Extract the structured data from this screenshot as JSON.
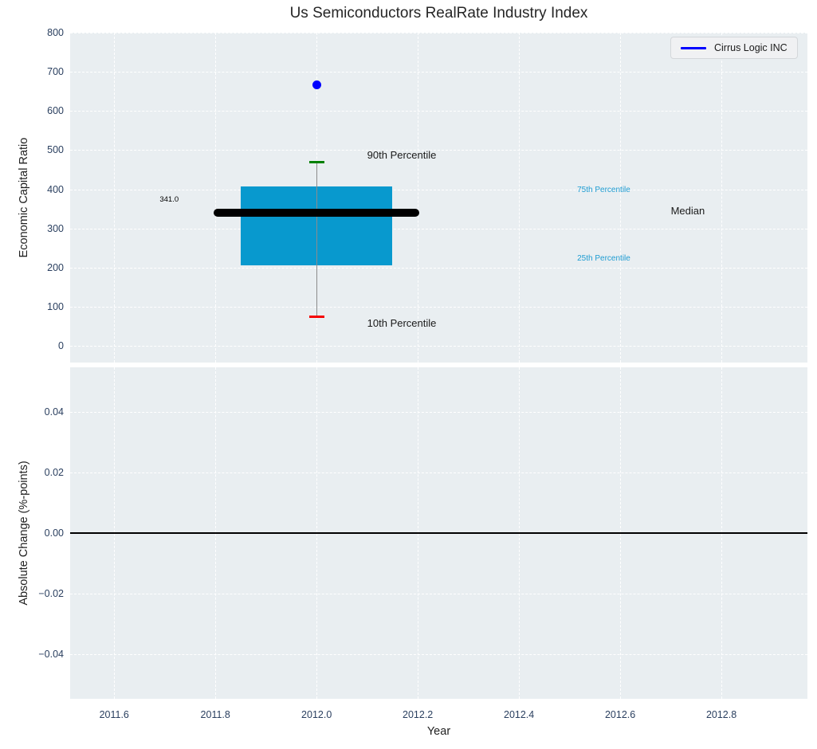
{
  "title": "Us Semiconductors RealRate Industry Index",
  "legend": {
    "label": "Cirrus Logic INC",
    "line_color": "#0000ff"
  },
  "colors": {
    "figure_bg": "#ffffff",
    "plot_bg": "#e9eef1",
    "grid": "#ffffff",
    "tick_label": "#2a3f5f",
    "axis_title": "#1f1f1f",
    "title_text": "#262626",
    "box_fill": "#0899ce",
    "median_line": "#000000",
    "whisker": "#8c8c8c",
    "cap_high": "#008000",
    "cap_low": "#f50000",
    "company_point": "#0000ff",
    "zero_line": "#000000",
    "percentile_text": "#1e9cd2",
    "legend_bg": "#f0f1f3",
    "legend_border": "#d4d7da"
  },
  "chart_data": [
    {
      "type": "boxplot",
      "panel": "top",
      "title": "Us Semiconductors RealRate Industry Index",
      "ylabel": "Economic Capital Ratio",
      "ylim": [
        -42.5,
        800
      ],
      "grid": true,
      "yticks": [
        {
          "v": 0,
          "label": "0"
        },
        {
          "v": 100,
          "label": "100"
        },
        {
          "v": 200,
          "label": "200"
        },
        {
          "v": 300,
          "label": "300"
        },
        {
          "v": 400,
          "label": "400"
        },
        {
          "v": 500,
          "label": "500"
        },
        {
          "v": 600,
          "label": "600"
        },
        {
          "v": 700,
          "label": "700"
        },
        {
          "v": 800,
          "label": "800"
        }
      ],
      "box": {
        "x_center": 2012.0,
        "box_left": 2011.85,
        "box_right": 2012.15,
        "q1": 205,
        "q3": 407,
        "median": 341,
        "median_label": "341.0",
        "median_line_left": 2011.8,
        "median_line_right": 2012.2,
        "whisker_low": 74,
        "whisker_high": 470,
        "cap_half_width": 0.015
      },
      "company_point": {
        "label": "Cirrus Logic INC",
        "x": 2012.0,
        "y": 667
      },
      "annotations": [
        {
          "text": "90th Percentile",
          "x": 2012.1,
          "y": 487,
          "color": "#1a1a1a",
          "size": 13
        },
        {
          "text": "10th Percentile",
          "x": 2012.1,
          "y": 57,
          "color": "#1a1a1a",
          "size": 13
        },
        {
          "text": "75th Percentile",
          "x": 2012.515,
          "y": 396,
          "color": "#1e9cd2",
          "size": 10
        },
        {
          "text": "25th Percentile",
          "x": 2012.515,
          "y": 221,
          "color": "#1e9cd2",
          "size": 10
        },
        {
          "text": "Median",
          "x": 2012.7,
          "y": 343,
          "color": "#1a1a1a",
          "size": 13
        },
        {
          "text": "341.0",
          "x": 2011.69,
          "y": 373,
          "color": "#000000",
          "size": 9.5
        }
      ]
    },
    {
      "type": "line",
      "panel": "bottom",
      "ylabel": "Absolute Change (%-points)",
      "xlabel": "Year",
      "ylim": [
        -0.0547,
        0.0547
      ],
      "xlim": [
        2011.513,
        2012.97
      ],
      "grid": true,
      "yticks": [
        {
          "v": 0.04,
          "label": "0.04"
        },
        {
          "v": 0.02,
          "label": "0.02"
        },
        {
          "v": 0,
          "label": "0.00"
        },
        {
          "v": -0.02,
          "label": "−0.02"
        },
        {
          "v": -0.04,
          "label": "−0.04"
        }
      ],
      "xticks": [
        {
          "v": 2011.6,
          "label": "2011.6"
        },
        {
          "v": 2011.8,
          "label": "2011.8"
        },
        {
          "v": 2012.0,
          "label": "2012.0"
        },
        {
          "v": 2012.2,
          "label": "2012.2"
        },
        {
          "v": 2012.4,
          "label": "2012.4"
        },
        {
          "v": 2012.6,
          "label": "2012.6"
        },
        {
          "v": 2012.8,
          "label": "2012.8"
        }
      ],
      "zero_line": {
        "y": 0
      },
      "series": []
    }
  ]
}
